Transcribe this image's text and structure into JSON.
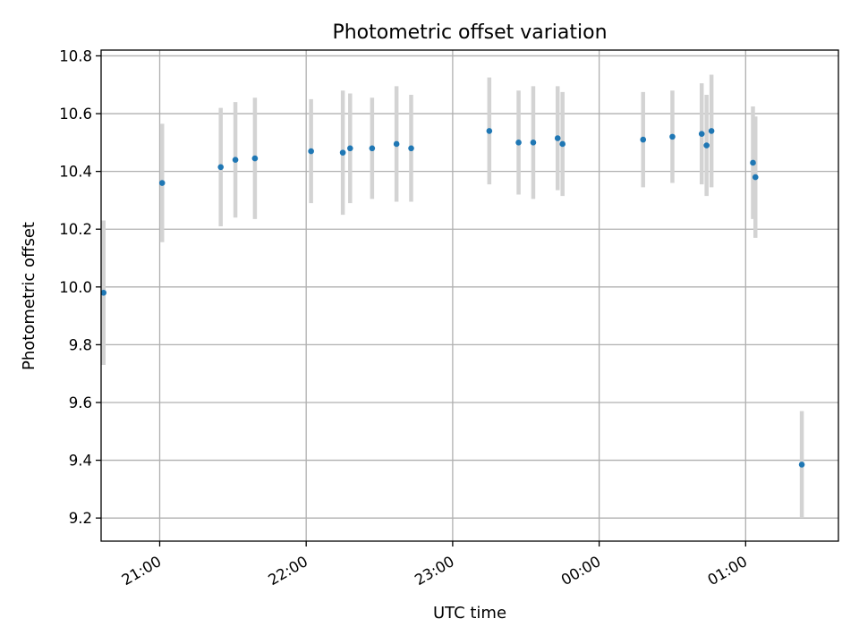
{
  "chart_data": {
    "type": "scatter",
    "title": "Photometric offset variation",
    "xlabel": "UTC time",
    "ylabel": "Photometric offset",
    "x_axis_type": "time",
    "xlim": [
      "20:36",
      "01:38"
    ],
    "ylim": [
      9.12,
      10.82
    ],
    "x_ticks": [
      "21:00",
      "22:00",
      "23:00",
      "00:00",
      "01:00"
    ],
    "y_ticks": [
      "9.2",
      "9.4",
      "9.6",
      "9.8",
      "10.0",
      "10.2",
      "10.4",
      "10.6",
      "10.8"
    ],
    "grid": true,
    "legend": "none",
    "colors": {
      "point": "#1f77b4",
      "errorbar": "#d3d3d3",
      "grid": "#b0b0b0"
    },
    "series": [
      {
        "x": [
          "20:37",
          "21:01",
          "21:25",
          "21:31",
          "21:39",
          "22:02",
          "22:15",
          "22:18",
          "22:27",
          "22:37",
          "22:43",
          "23:15",
          "23:27",
          "23:33",
          "23:43",
          "23:45",
          "00:18",
          "00:30",
          "00:42",
          "00:44",
          "00:46",
          "01:03",
          "01:04",
          "01:23"
        ],
        "y": [
          9.98,
          10.36,
          10.415,
          10.44,
          10.445,
          10.47,
          10.465,
          10.48,
          10.48,
          10.495,
          10.48,
          10.54,
          10.5,
          10.5,
          10.515,
          10.495,
          10.51,
          10.52,
          10.53,
          10.49,
          10.54,
          10.43,
          10.38,
          9.385
        ],
        "yerr": [
          0.25,
          0.205,
          0.205,
          0.2,
          0.21,
          0.18,
          0.215,
          0.19,
          0.175,
          0.2,
          0.185,
          0.185,
          0.18,
          0.195,
          0.18,
          0.18,
          0.165,
          0.16,
          0.175,
          0.175,
          0.195,
          0.195,
          0.21,
          0.185
        ]
      }
    ]
  }
}
